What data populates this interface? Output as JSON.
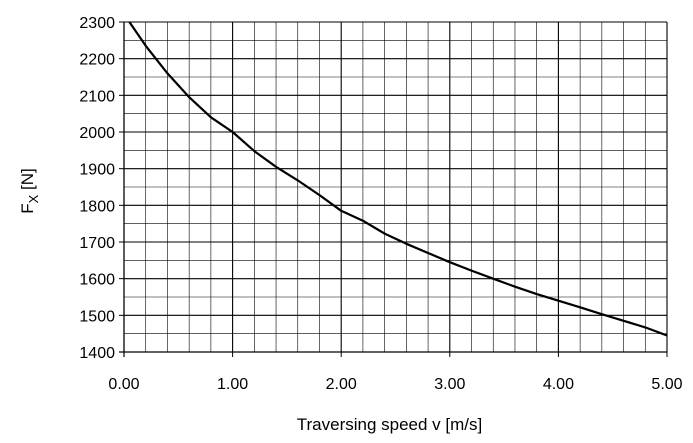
{
  "chart_data": {
    "type": "line",
    "title": "",
    "xlabel": "Traversing speed v [m/s]",
    "ylabel_main": "F",
    "ylabel_sub": "X",
    "ylabel_unit": "[N]",
    "xlim": [
      0,
      5
    ],
    "ylim": [
      1400,
      2300
    ],
    "x_ticks": [
      "0.00",
      "1.00",
      "2.00",
      "3.00",
      "4.00",
      "5.00"
    ],
    "y_ticks": [
      "1400",
      "1500",
      "1600",
      "1700",
      "1800",
      "1900",
      "2000",
      "2100",
      "2200",
      "2300"
    ],
    "x_tick_values": [
      0,
      1,
      2,
      3,
      4,
      5
    ],
    "y_tick_values": [
      1400,
      1500,
      1600,
      1700,
      1800,
      1900,
      2000,
      2100,
      2200,
      2300
    ],
    "grid": "on",
    "series": [
      {
        "x": [
          0.05,
          0.2,
          0.4,
          0.6,
          0.8,
          1.0,
          1.2,
          1.4,
          1.6,
          1.8,
          2.0,
          2.2,
          2.4,
          2.6,
          2.8,
          3.0,
          3.2,
          3.4,
          3.6,
          3.8,
          4.0,
          4.2,
          4.4,
          4.6,
          4.8,
          5.0
        ],
        "y": [
          2300,
          2235,
          2160,
          2095,
          2040,
          2000,
          1948,
          1905,
          1868,
          1828,
          1785,
          1758,
          1723,
          1695,
          1670,
          1645,
          1622,
          1600,
          1578,
          1558,
          1540,
          1522,
          1503,
          1485,
          1467,
          1445
        ]
      }
    ]
  }
}
